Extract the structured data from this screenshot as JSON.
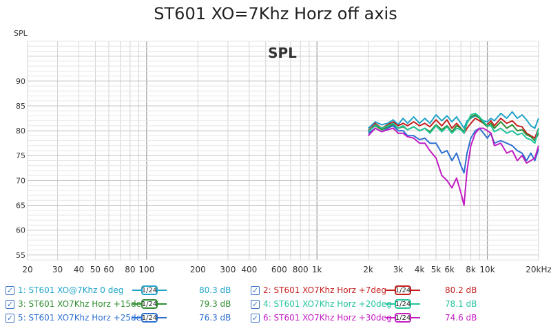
{
  "title": "ST601 XO=7Khz Horz off axis",
  "chart_data": {
    "type": "line",
    "title": "ST601 XO=7Khz Horz off axis",
    "ylabel": "SPL",
    "watermark": "SPL",
    "xscale": "log",
    "xlim": [
      20,
      20000
    ],
    "ylim": [
      54,
      98
    ],
    "grid": true,
    "x_tick_labels": [
      "20",
      "30",
      "40",
      "50",
      "60",
      "80",
      "100",
      "200",
      "300",
      "400",
      "600",
      "800",
      "1k",
      "2k",
      "3k",
      "4k",
      "5k",
      "6k",
      "8k",
      "10k",
      "20kHz"
    ],
    "x_tick_values": [
      20,
      30,
      40,
      50,
      60,
      80,
      100,
      200,
      300,
      400,
      600,
      800,
      1000,
      2000,
      3000,
      4000,
      5000,
      6000,
      8000,
      10000,
      20000
    ],
    "y_tick_labels": [
      "55",
      "60",
      "65",
      "70",
      "75",
      "80",
      "85",
      "90"
    ],
    "y_tick_values": [
      55,
      60,
      65,
      70,
      75,
      80,
      85,
      90
    ],
    "x": [
      2000,
      2200,
      2400,
      2600,
      2800,
      3000,
      3200,
      3400,
      3700,
      4000,
      4300,
      4600,
      5000,
      5400,
      5800,
      6200,
      6600,
      7000,
      7300,
      7600,
      8000,
      8500,
      9000,
      9500,
      10000,
      10500,
      11000,
      12000,
      13000,
      14000,
      15000,
      16000,
      17000,
      18000,
      19000,
      20000
    ],
    "series": [
      {
        "name": "1: ST601 XO@7Khz 0 deg",
        "color": "#1fa3c8",
        "values": [
          80.5,
          81.8,
          81.2,
          81.5,
          82.2,
          81.2,
          82.5,
          81.5,
          82.8,
          81.5,
          82.5,
          81.5,
          83.2,
          82.0,
          83.0,
          81.8,
          82.8,
          81.5,
          80.5,
          82.0,
          82.5,
          83.0,
          82.6,
          82.0,
          81.8,
          82.5,
          82.0,
          83.5,
          82.5,
          83.8,
          82.5,
          83.2,
          82.2,
          81.0,
          80.5,
          82.5
        ]
      },
      {
        "name": "2: ST601 XO7Khz Horz +7deg",
        "color": "#c41e1e",
        "values": [
          80.0,
          81.5,
          80.5,
          81.2,
          81.8,
          81.0,
          81.5,
          81.0,
          81.8,
          81.0,
          81.5,
          80.8,
          82.2,
          81.0,
          82.2,
          80.5,
          81.5,
          80.5,
          79.5,
          80.5,
          81.5,
          82.5,
          82.0,
          81.5,
          81.2,
          82.0,
          81.0,
          82.5,
          81.5,
          82.0,
          81.0,
          80.8,
          79.5,
          79.0,
          78.5,
          80.5
        ]
      },
      {
        "name": "3: ST601 XO7Khz Horz +15deg",
        "color": "#2e8b2e",
        "values": [
          80.0,
          81.0,
          80.2,
          80.8,
          81.2,
          80.5,
          80.8,
          80.2,
          80.8,
          80.0,
          80.5,
          79.8,
          81.2,
          80.2,
          81.0,
          79.8,
          81.0,
          80.5,
          79.8,
          81.5,
          82.8,
          83.2,
          82.5,
          81.5,
          80.8,
          81.5,
          80.5,
          81.8,
          80.5,
          81.2,
          80.0,
          80.2,
          79.2,
          78.8,
          78.0,
          79.5
        ]
      },
      {
        "name": "4: ST601 XO7Khz Horz +20deg",
        "color": "#1fc39b",
        "values": [
          79.8,
          81.2,
          80.5,
          81.0,
          81.5,
          80.5,
          81.0,
          80.2,
          80.8,
          80.0,
          80.5,
          79.5,
          81.0,
          79.8,
          80.8,
          79.5,
          80.5,
          80.2,
          79.5,
          81.5,
          83.2,
          83.5,
          82.8,
          81.8,
          81.0,
          81.0,
          79.8,
          80.5,
          79.5,
          80.0,
          79.2,
          79.5,
          78.5,
          78.2,
          77.5,
          80.5
        ]
      },
      {
        "name": "5: ST601 XO7Khz Horz +25deg",
        "color": "#2d6fd0",
        "values": [
          79.5,
          80.5,
          79.8,
          80.5,
          81.0,
          80.0,
          80.0,
          79.0,
          79.0,
          78.2,
          78.5,
          77.5,
          77.5,
          75.5,
          76.0,
          74.0,
          75.5,
          73.0,
          71.5,
          75.5,
          78.5,
          80.0,
          80.5,
          79.5,
          78.5,
          79.5,
          77.5,
          78.0,
          77.5,
          77.0,
          76.0,
          75.5,
          74.0,
          75.5,
          74.0,
          76.3
        ]
      },
      {
        "name": "6: ST601 XO7Khz Horz +30deg",
        "color": "#c21cc2",
        "values": [
          79.0,
          80.5,
          79.8,
          80.2,
          80.5,
          79.5,
          79.5,
          78.8,
          78.5,
          77.5,
          77.5,
          76.0,
          74.5,
          71.0,
          70.0,
          68.5,
          70.5,
          67.5,
          65.0,
          72.0,
          77.0,
          79.5,
          80.5,
          80.5,
          80.0,
          79.5,
          77.0,
          77.5,
          75.5,
          76.0,
          74.0,
          75.0,
          73.5,
          74.0,
          74.5,
          77.0
        ]
      }
    ]
  },
  "legend": [
    {
      "label": "1: ST601 XO@7Khz 0 deg",
      "smoothing": "1/24",
      "value": "80.3 dB",
      "color": "#1fa3c8",
      "checked": true
    },
    {
      "label": "2: ST601 XO7Khz Horz +7deg",
      "smoothing": "1/24",
      "value": "80.2 dB",
      "color": "#c41e1e",
      "checked": true
    },
    {
      "label": "3: ST601 XO7Khz Horz +15deg",
      "smoothing": "1/24",
      "value": "79.3 dB",
      "color": "#2e8b2e",
      "checked": true
    },
    {
      "label": "4: ST601 XO7Khz Horz +20deg",
      "smoothing": "1/24",
      "value": "78.1 dB",
      "color": "#1fc39b",
      "checked": true
    },
    {
      "label": "5: ST601 XO7Khz Horz +25deg",
      "smoothing": "1/24",
      "value": "76.3 dB",
      "color": "#2d6fd0",
      "checked": true
    },
    {
      "label": "6: ST601 XO7Khz Horz +30deg",
      "smoothing": "1/24",
      "value": "74.6 dB",
      "color": "#c21cc2",
      "checked": true
    }
  ],
  "checkmark": "✓"
}
